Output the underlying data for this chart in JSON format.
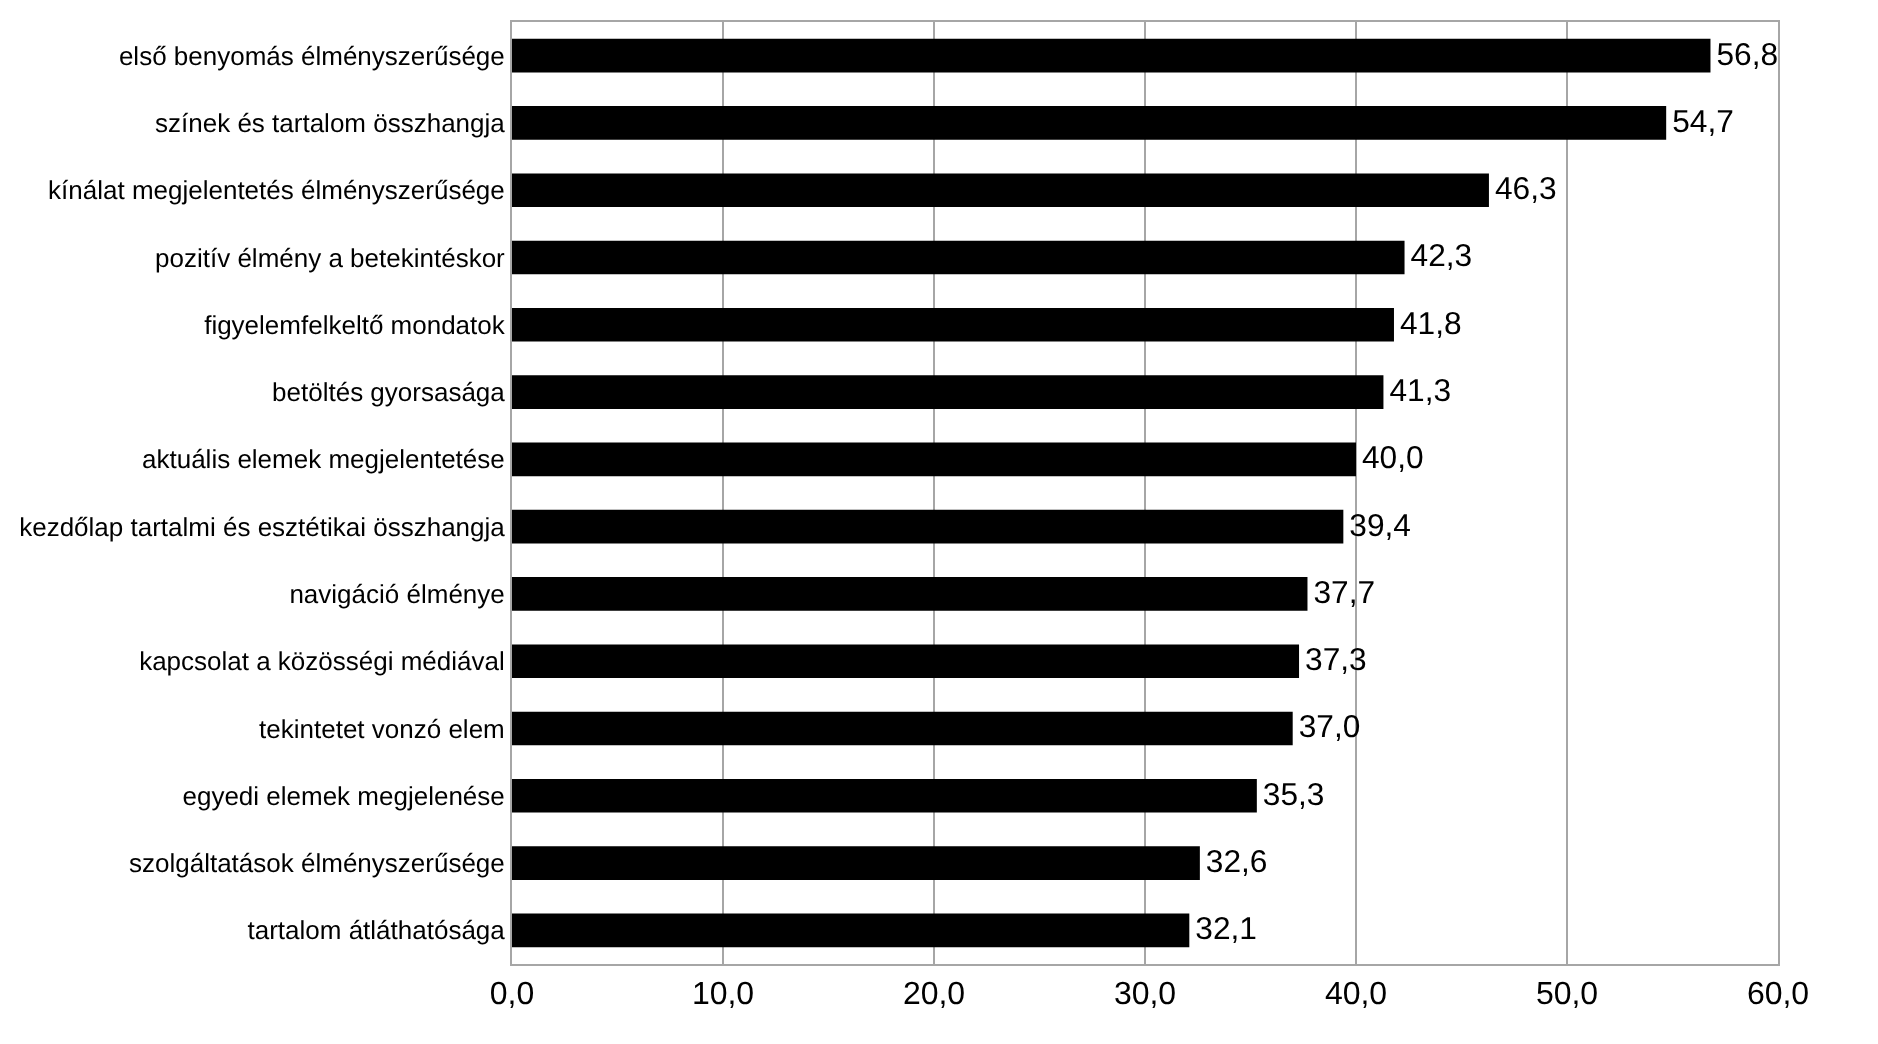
{
  "chart_data": {
    "type": "bar",
    "orientation": "horizontal",
    "categories": [
      "első benyomás élményszerűsége",
      "színek és tartalom összhangja",
      "kínálat megjelentetés élményszerűsége",
      "pozitív élmény a betekintéskor",
      "figyelemfelkeltő mondatok",
      "betöltés gyorsasága",
      "aktuális elemek megjelentetése",
      "kezdőlap tartalmi és esztétikai összhangja",
      "navigáció élménye",
      "kapcsolat a közösségi médiával",
      "tekintetet vonzó elem",
      "egyedi elemek megjelenése",
      "szolgáltatások élményszerűsége",
      "tartalom átláthatósága"
    ],
    "values": [
      56.8,
      54.7,
      46.3,
      42.3,
      41.8,
      41.3,
      40.0,
      39.4,
      37.7,
      37.3,
      37.0,
      35.3,
      32.6,
      32.1
    ],
    "value_labels": [
      "56,8",
      "54,7",
      "46,3",
      "42,3",
      "41,8",
      "41,3",
      "40,0",
      "39,4",
      "37,7",
      "37,3",
      "37,0",
      "35,3",
      "32,6",
      "32,1"
    ],
    "colors": [
      "#000000",
      "#000000",
      "#000000",
      "#000000",
      "#000000",
      "#000000",
      "#000000",
      "#000000",
      "#000000",
      "#000000",
      "#000000",
      "#000000",
      "#000000",
      "#000000"
    ],
    "xlim": [
      0,
      60
    ],
    "xticks": [
      {
        "value": 0,
        "label": "0,0"
      },
      {
        "value": 10,
        "label": "10,0"
      },
      {
        "value": 20,
        "label": "20,0"
      },
      {
        "value": 30,
        "label": "30,0"
      },
      {
        "value": 40,
        "label": "40,0"
      },
      {
        "value": 50,
        "label": "50,0"
      },
      {
        "value": 60,
        "label": "60,0"
      }
    ],
    "grid": "x"
  }
}
